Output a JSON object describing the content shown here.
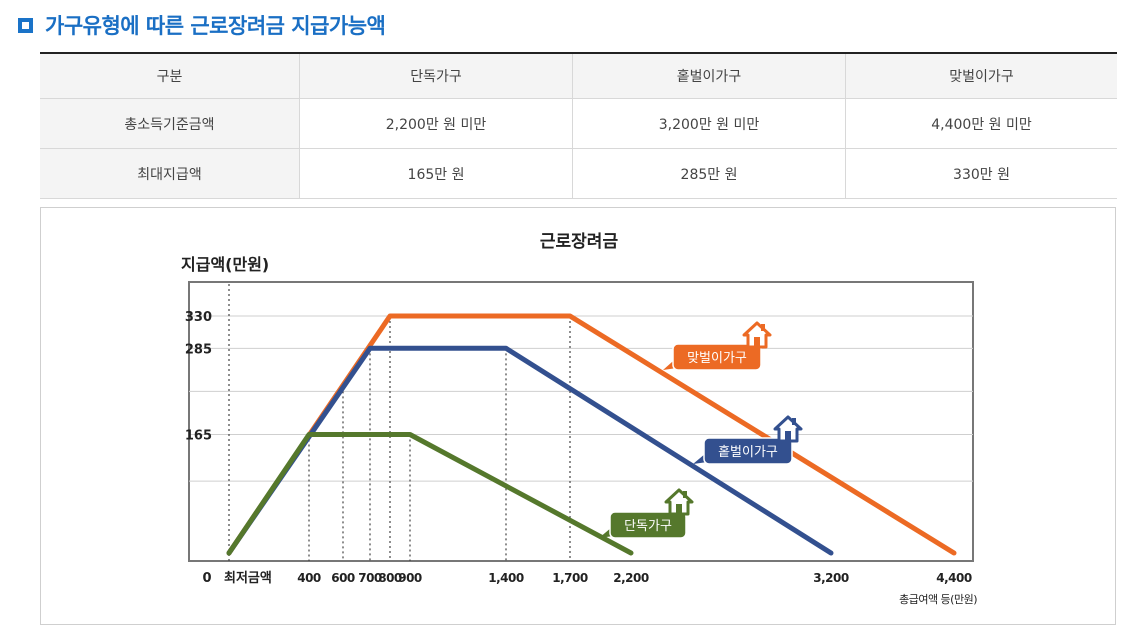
{
  "heading": "가구유형에 따른 근로장려금 지급가능액",
  "table": {
    "headers": [
      "구분",
      "단독가구",
      "홑벌이가구",
      "맞벌이가구"
    ],
    "rows": [
      [
        "총소득기준금액",
        "2,200만 원 미만",
        "3,200만 원 미만",
        "4,400만 원 미만"
      ],
      [
        "최대지급액",
        "165만 원",
        "285만 원",
        "330만 원"
      ]
    ]
  },
  "chart_data": {
    "type": "line",
    "title": "근로장려금",
    "ylabel": "지급액(만원)",
    "xlabel": "총급여액 등(만원)",
    "origin_label": "0",
    "min_wage_label": "최저금액",
    "y_ticks": [
      165,
      285,
      330
    ],
    "x_ticks": [
      400,
      600,
      700,
      800,
      900,
      1400,
      1700,
      2200,
      3200,
      4400
    ],
    "x_tick_labels": [
      "400",
      "600",
      "700",
      "800",
      "900",
      "1,400",
      "1,700",
      "2,200",
      "3,200",
      "4,400"
    ],
    "series": [
      {
        "name": "맞벌이가구",
        "color": "#ec6a24",
        "points": [
          [
            0,
            0
          ],
          [
            800,
            330
          ],
          [
            1700,
            330
          ],
          [
            4400,
            0
          ]
        ]
      },
      {
        "name": "홑벌이가구",
        "color": "#33508f",
        "points": [
          [
            0,
            0
          ],
          [
            700,
            285
          ],
          [
            1400,
            285
          ],
          [
            3200,
            0
          ]
        ]
      },
      {
        "name": "단독가구",
        "color": "#55782c",
        "points": [
          [
            0,
            0
          ],
          [
            400,
            165
          ],
          [
            900,
            165
          ],
          [
            2200,
            0
          ]
        ]
      }
    ],
    "grid": true
  }
}
